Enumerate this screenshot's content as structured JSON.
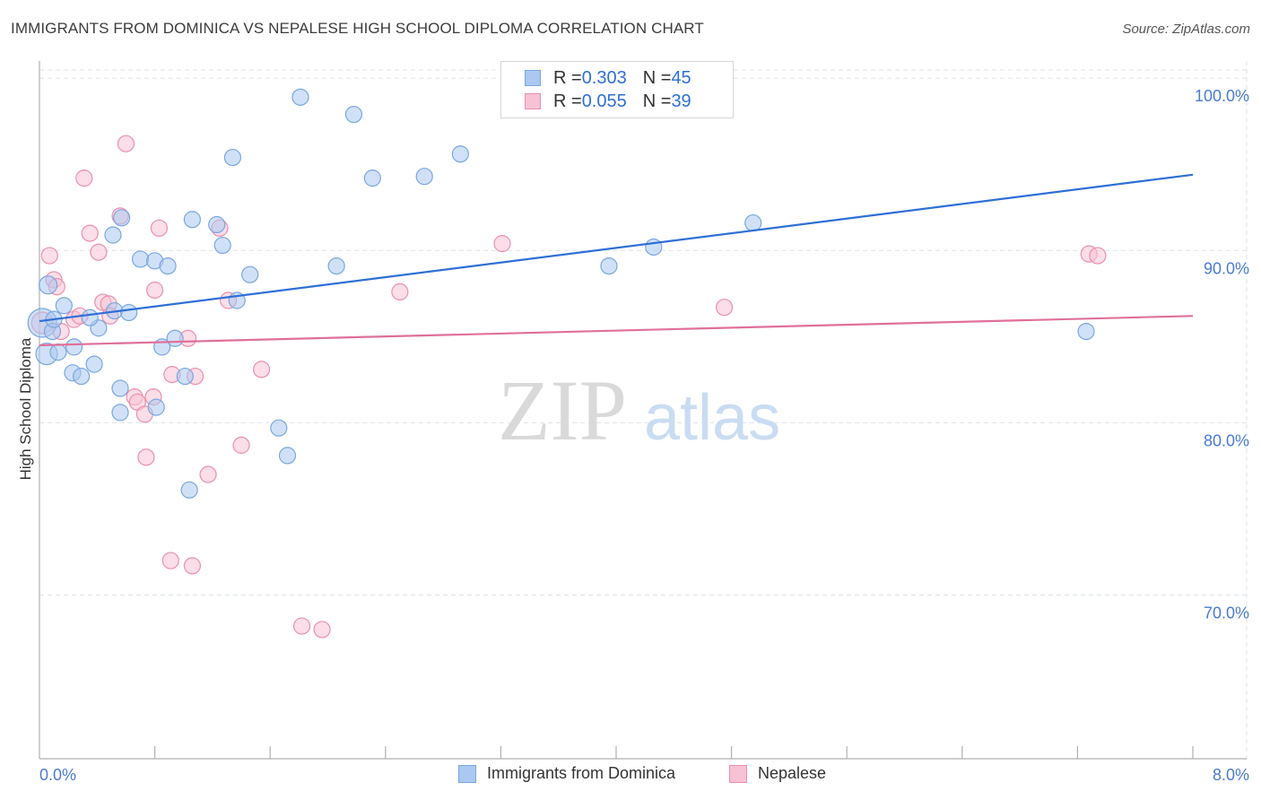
{
  "title": "IMMIGRANTS FROM DOMINICA VS NEPALESE HIGH SCHOOL DIPLOMA CORRELATION CHART",
  "source": "Source: ZipAtlas.com",
  "watermark": {
    "zip": "ZIP",
    "atlas": "atlas"
  },
  "legend_top": {
    "rows": [
      {
        "r_label": "R = ",
        "r_value": "0.303",
        "n_label": "N = ",
        "n_value": "45"
      },
      {
        "r_label": "R = ",
        "r_value": "0.055",
        "n_label": "N = ",
        "n_value": "39"
      }
    ]
  },
  "legend_bottom": [
    {
      "label": "Immigrants from Dominica"
    },
    {
      "label": "Nepalese"
    }
  ],
  "colors": {
    "blue_fill": "#aac8f0",
    "blue_stroke": "#7aa6e0",
    "blue_line": "#2f6fd6",
    "pink_fill": "#f7c2d3",
    "pink_stroke": "#eb8fae",
    "pink_line": "#e0709a",
    "grid": "#dde3ea",
    "axis": "#b0b0b0",
    "tick_text": "#4a7bd0"
  },
  "chart_data": {
    "type": "scatter",
    "title": "IMMIGRANTS FROM DOMINICA VS NEPALESE HIGH SCHOOL DIPLOMA CORRELATION CHART",
    "xlabel": "",
    "ylabel": "High School Diploma",
    "xlim": [
      0,
      8
    ],
    "ylim": [
      60.5,
      101
    ],
    "x_tick_labels": [
      "0.0%",
      "8.0%"
    ],
    "y_ticks": [
      70,
      80,
      90,
      100
    ],
    "y_tick_labels": [
      "70.0%",
      "80.0%",
      "90.0%",
      "100.0%"
    ],
    "grid": true,
    "legend_position": "bottom-center",
    "series": [
      {
        "name": "Immigrants from Dominica",
        "color": "#7aa6e0",
        "trend": {
          "x": [
            0,
            8
          ],
          "y": [
            85.9,
            94.4
          ]
        },
        "points": [
          [
            0.02,
            85.8,
            16
          ],
          [
            0.05,
            84.0,
            12
          ],
          [
            0.06,
            88.0,
            10
          ],
          [
            0.09,
            85.3,
            9
          ],
          [
            0.13,
            84.1,
            9
          ],
          [
            0.17,
            86.8,
            9
          ],
          [
            0.24,
            84.4,
            9
          ],
          [
            0.38,
            83.4,
            9
          ],
          [
            0.23,
            82.9,
            9
          ],
          [
            0.29,
            82.7,
            9
          ],
          [
            0.41,
            85.5,
            9
          ],
          [
            0.52,
            86.5,
            9
          ],
          [
            0.62,
            86.4,
            9
          ],
          [
            0.57,
            91.9,
            9
          ],
          [
            0.51,
            90.9,
            9
          ],
          [
            0.7,
            89.5,
            9
          ],
          [
            0.8,
            89.4,
            9
          ],
          [
            0.89,
            89.1,
            9
          ],
          [
            0.56,
            82.0,
            9
          ],
          [
            0.56,
            80.6,
            9
          ],
          [
            0.81,
            80.9,
            9
          ],
          [
            0.85,
            84.4,
            9
          ],
          [
            0.94,
            84.9,
            9
          ],
          [
            1.01,
            82.7,
            9
          ],
          [
            1.04,
            76.1,
            9
          ],
          [
            1.06,
            91.8,
            9
          ],
          [
            1.23,
            91.5,
            9
          ],
          [
            1.27,
            90.3,
            9
          ],
          [
            1.34,
            95.4,
            9
          ],
          [
            1.46,
            88.6,
            9
          ],
          [
            1.37,
            87.1,
            9
          ],
          [
            1.66,
            79.7,
            9
          ],
          [
            1.72,
            78.1,
            9
          ],
          [
            1.81,
            98.9,
            9
          ],
          [
            2.06,
            89.1,
            9
          ],
          [
            2.18,
            97.9,
            9
          ],
          [
            2.31,
            94.2,
            9
          ],
          [
            2.67,
            94.3,
            9
          ],
          [
            2.92,
            95.6,
            9
          ],
          [
            3.95,
            89.1,
            9
          ],
          [
            4.26,
            90.2,
            9
          ],
          [
            4.95,
            91.6,
            9
          ],
          [
            7.26,
            85.3,
            9
          ],
          [
            0.35,
            86.1,
            9
          ],
          [
            0.1,
            86.0,
            9
          ]
        ]
      },
      {
        "name": "Nepalese",
        "color": "#eb8fae",
        "trend": {
          "x": [
            0,
            8
          ],
          "y": [
            84.5,
            86.2
          ]
        },
        "points": [
          [
            0.02,
            85.8,
            12
          ],
          [
            0.07,
            89.7,
            9
          ],
          [
            0.1,
            88.3,
            9
          ],
          [
            0.12,
            87.9,
            9
          ],
          [
            0.15,
            85.3,
            9
          ],
          [
            0.24,
            86.0,
            9
          ],
          [
            0.28,
            86.2,
            9
          ],
          [
            0.31,
            94.2,
            9
          ],
          [
            0.35,
            91.0,
            9
          ],
          [
            0.41,
            89.9,
            9
          ],
          [
            0.44,
            87.0,
            9
          ],
          [
            0.48,
            86.9,
            9
          ],
          [
            0.49,
            86.2,
            9
          ],
          [
            0.56,
            92.0,
            9
          ],
          [
            0.6,
            96.2,
            9
          ],
          [
            0.66,
            81.5,
            9
          ],
          [
            0.68,
            81.2,
            9
          ],
          [
            0.73,
            80.5,
            9
          ],
          [
            0.74,
            78.0,
            9
          ],
          [
            0.79,
            81.5,
            9
          ],
          [
            0.8,
            87.7,
            9
          ],
          [
            0.83,
            91.3,
            9
          ],
          [
            0.91,
            72.0,
            9
          ],
          [
            0.92,
            82.8,
            9
          ],
          [
            1.03,
            84.9,
            9
          ],
          [
            1.06,
            71.7,
            9
          ],
          [
            1.08,
            82.7,
            9
          ],
          [
            1.17,
            77.0,
            9
          ],
          [
            1.25,
            91.3,
            9
          ],
          [
            1.31,
            87.1,
            9
          ],
          [
            1.4,
            78.7,
            9
          ],
          [
            1.54,
            83.1,
            9
          ],
          [
            1.82,
            68.2,
            9
          ],
          [
            1.96,
            68.0,
            9
          ],
          [
            2.5,
            87.6,
            9
          ],
          [
            3.21,
            90.4,
            9
          ],
          [
            4.75,
            86.7,
            9
          ],
          [
            7.28,
            89.8,
            9
          ],
          [
            7.34,
            89.7,
            9
          ]
        ]
      }
    ]
  }
}
